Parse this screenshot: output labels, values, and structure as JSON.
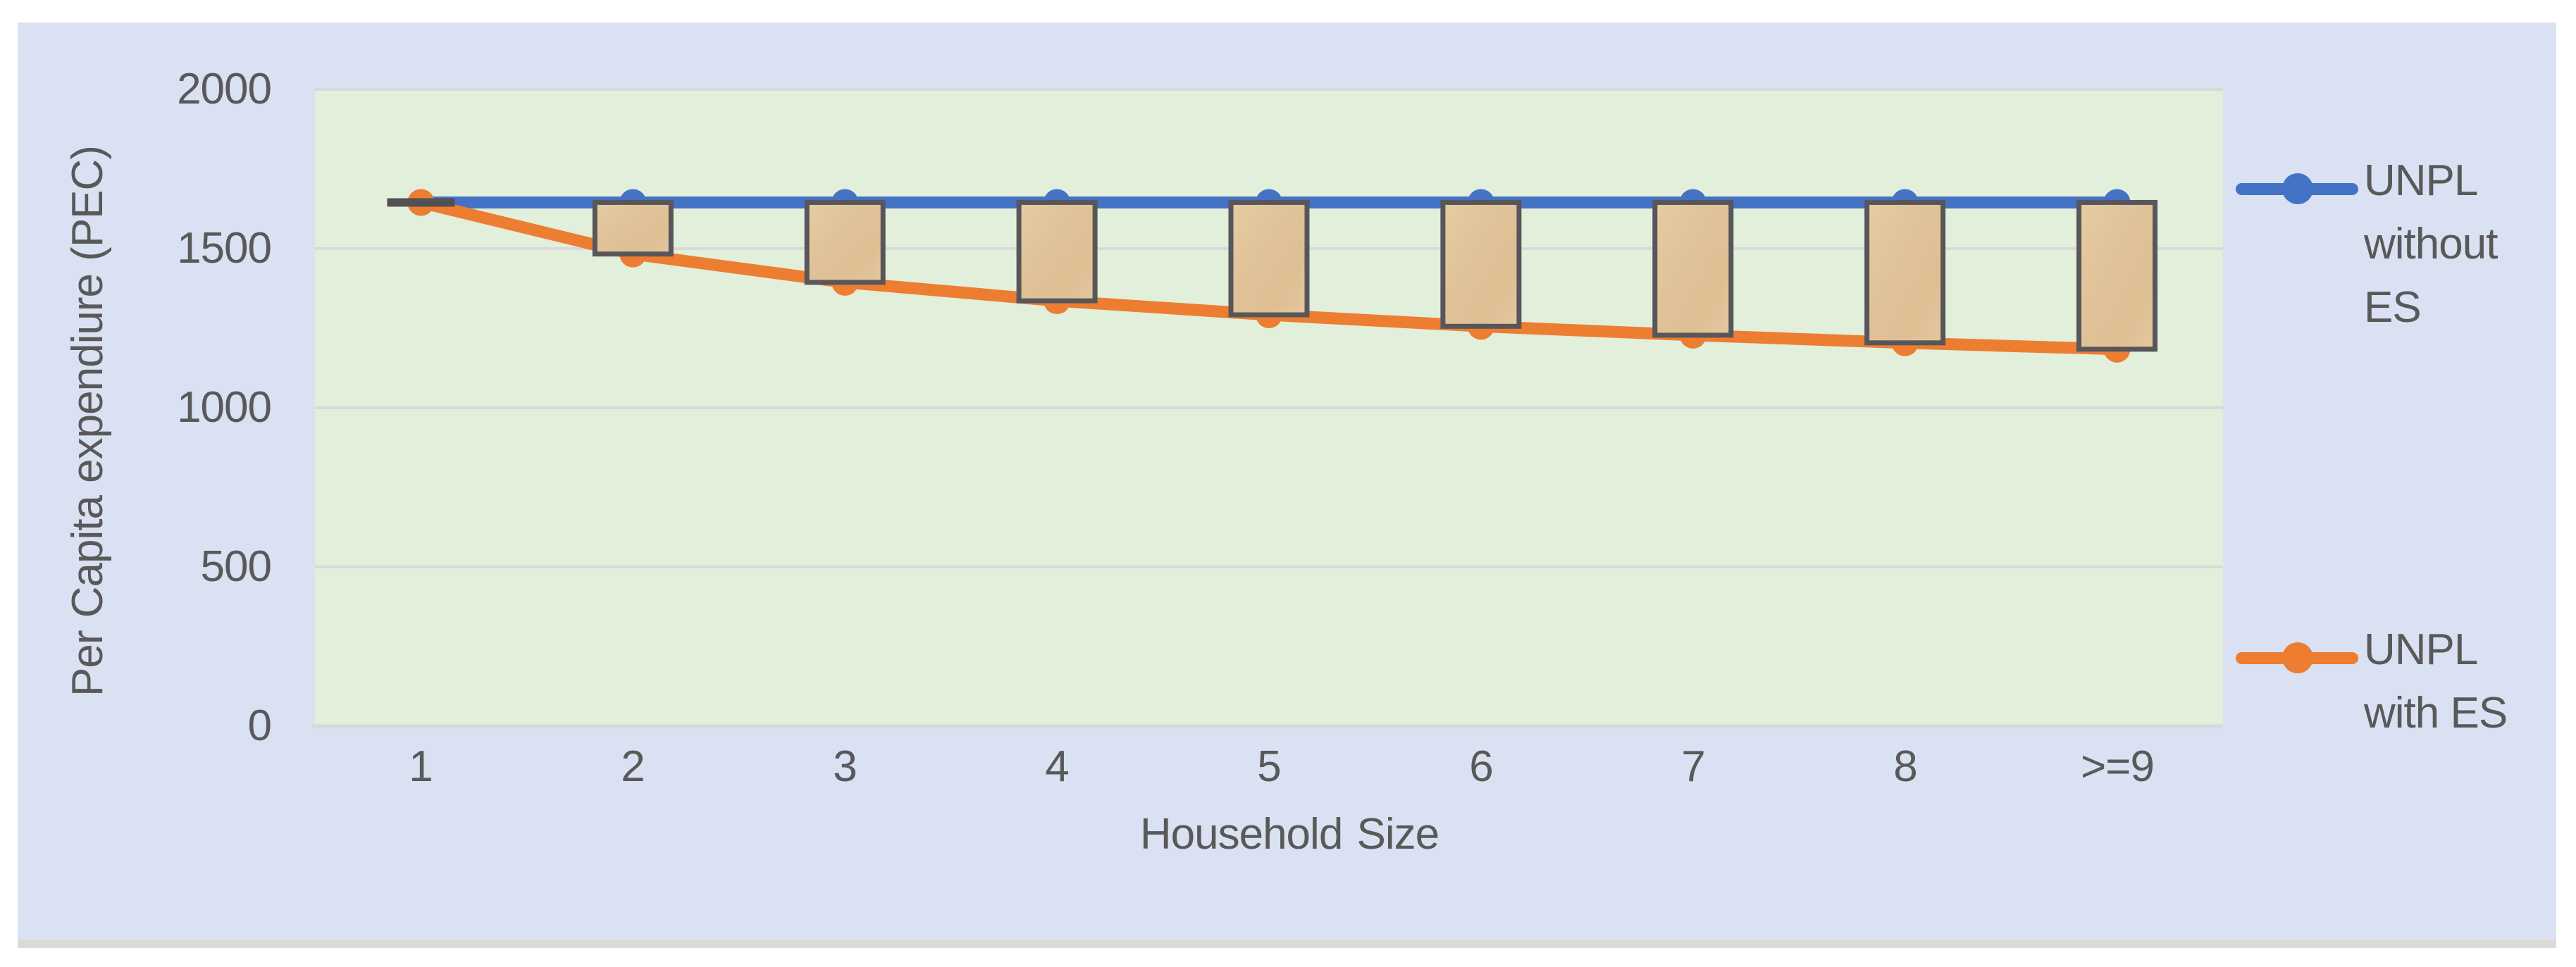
{
  "figure": {
    "page_background": "#FFFFFF",
    "chart_background": "#D9E1F2",
    "plot_background": "#E2EFDA",
    "gridline_color": "#D9D9D9",
    "axis_line_color": "#D9D9D9",
    "text_color": "#595959"
  },
  "chart_data": {
    "type": "line",
    "title": "",
    "xlabel": "Household Size",
    "ylabel": "Per Capita expendiure (PEC)",
    "categories": [
      "1",
      "2",
      "3",
      "4",
      "5",
      "6",
      "7",
      "8",
      ">=9"
    ],
    "series": [
      {
        "name": "UNPL without ES",
        "color": "#4472C4",
        "marker": "circle",
        "values": [
          1645,
          1645,
          1645,
          1645,
          1645,
          1645,
          1645,
          1645,
          1645
        ]
      },
      {
        "name": "UNPL with ES",
        "color": "#ED7D31",
        "marker": "circle",
        "values": [
          1645,
          1483,
          1394,
          1336,
          1292,
          1256,
          1228,
          1204,
          1184
        ]
      }
    ],
    "ylim": [
      0,
      2000
    ],
    "ytick_values": [
      0,
      500,
      1000,
      1500,
      2000
    ],
    "ytick_labels": [
      "0",
      "500",
      "1000",
      "1500",
      "2000"
    ],
    "grid": "horizontal",
    "legend_position": "right",
    "high_low_bars": {
      "enabled": true,
      "fill": "#E2C59D",
      "border": "#57575B",
      "zero_gap_dash_color": "#515155"
    }
  },
  "legend": {
    "entries": [
      {
        "label": "UNPL without ES",
        "lines": [
          "UNPL",
          "without",
          "ES"
        ],
        "color": "#4472C4"
      },
      {
        "label": "UNPL with ES",
        "lines": [
          "UNPL",
          "with ES"
        ],
        "color": "#ED7D31"
      }
    ]
  }
}
